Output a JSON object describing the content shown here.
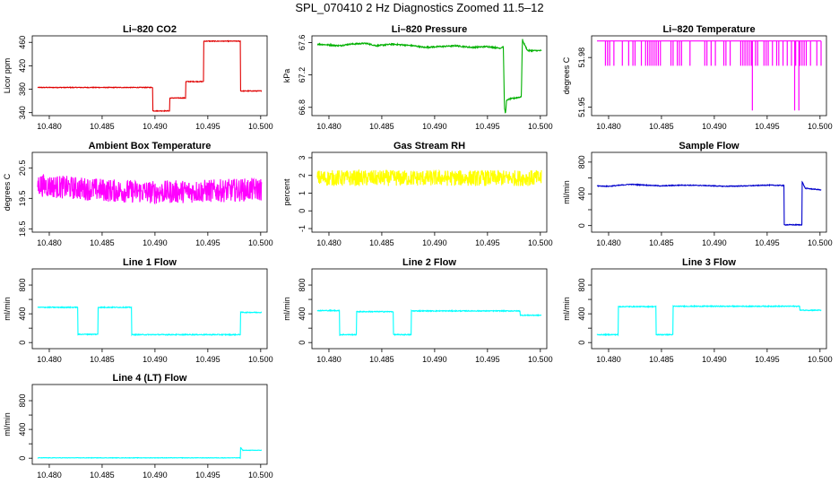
{
  "figure_title": "SPL_070410  2 Hz Diagnostics Zoomed 11.5–12",
  "x_tick_labels": [
    "10.480",
    "10.485",
    "10.490",
    "10.495",
    "10.500"
  ],
  "chart_data": [
    {
      "type": "line",
      "title": "Li–820 CO2",
      "ylabel": "Licor ppm",
      "color": "#e00000",
      "xlim": [
        10.4789,
        10.5001
      ],
      "ylim": [
        338,
        468
      ],
      "x_ticks": [
        10.48,
        10.485,
        10.49,
        10.495,
        10.5
      ],
      "y_ticks": [
        340,
        380,
        420,
        460
      ],
      "y_tick_labels": [
        "340",
        "380",
        "420",
        "460"
      ],
      "noise": 0.6,
      "x": [
        10.4789,
        10.4898,
        10.4898,
        10.4914,
        10.4914,
        10.4929,
        10.4929,
        10.4946,
        10.4946,
        10.4981,
        10.4981,
        10.5001
      ],
      "y": [
        383,
        383,
        343,
        343,
        365,
        365,
        393,
        393,
        462,
        462,
        377,
        377
      ]
    },
    {
      "type": "line",
      "title": "Li–820 Pressure",
      "ylabel": "kPa",
      "color": "#00b000",
      "xlim": [
        10.4789,
        10.5001
      ],
      "ylim": [
        66.72,
        67.66
      ],
      "x_ticks": [
        10.48,
        10.485,
        10.49,
        10.495,
        10.5
      ],
      "y_ticks": [
        66.8,
        67.2,
        67.6
      ],
      "y_tick_labels": [
        "66.8",
        "67.2",
        "67.6"
      ],
      "noise": 0.008,
      "x": [
        10.4789,
        10.48,
        10.481,
        10.482,
        10.4835,
        10.4845,
        10.486,
        10.487,
        10.488,
        10.489,
        10.4905,
        10.492,
        10.4935,
        10.495,
        10.4962,
        10.4965,
        10.4966,
        10.4967,
        10.4968,
        10.497,
        10.4982,
        10.4983,
        10.4984,
        10.4986,
        10.4988,
        10.4992,
        10.5001
      ],
      "y": [
        67.58,
        67.57,
        67.56,
        67.58,
        67.59,
        67.56,
        67.58,
        67.57,
        67.56,
        67.54,
        67.55,
        67.56,
        67.54,
        67.55,
        67.53,
        67.55,
        66.8,
        66.72,
        66.88,
        66.9,
        66.93,
        67.64,
        67.6,
        67.55,
        67.5,
        67.5,
        67.5
      ]
    },
    {
      "type": "line",
      "title": "Li–820 Temperature",
      "ylabel": "degrees C",
      "color": "#ff00ff",
      "xlim": [
        10.4789,
        10.5001
      ],
      "ylim": [
        51.946,
        51.992
      ],
      "x_ticks": [
        10.48,
        10.485,
        10.49,
        10.495,
        10.5
      ],
      "y_ticks": [
        51.95,
        51.98
      ],
      "y_tick_labels": [
        "51.95",
        "51.98"
      ],
      "noise": 0,
      "x": [
        10.4789,
        10.5001
      ],
      "y": [
        51.99,
        51.99
      ],
      "spike_to": 51.975,
      "spike_step": 0.0002,
      "deep_spikes": [
        {
          "x": 10.4936,
          "y": 51.948
        },
        {
          "x": 10.4976,
          "y": 51.948
        },
        {
          "x": 10.498,
          "y": 51.948
        }
      ]
    },
    {
      "type": "line",
      "title": "Ambient Box Temperature",
      "ylabel": "degrees C",
      "color": "#ff00ff",
      "xlim": [
        10.4789,
        10.5001
      ],
      "ylim": [
        18.45,
        20.95
      ],
      "x_ticks": [
        10.48,
        10.485,
        10.49,
        10.495,
        10.5
      ],
      "y_ticks": [
        18.5,
        19.5,
        20.5
      ],
      "y_tick_labels": [
        "18.5",
        "19.5",
        "20.5"
      ],
      "noise": 0.38,
      "x": [
        10.4789,
        10.48,
        10.486,
        10.49,
        10.496,
        10.5001
      ],
      "y": [
        19.95,
        19.9,
        19.75,
        19.7,
        19.75,
        19.8
      ]
    },
    {
      "type": "line",
      "title": "Gas Stream RH",
      "ylabel": "percent",
      "color": "#ffff00",
      "xlim": [
        10.4789,
        10.5001
      ],
      "ylim": [
        -1.1,
        3.2
      ],
      "x_ticks": [
        10.48,
        10.485,
        10.49,
        10.495,
        10.5
      ],
      "y_ticks": [
        -1,
        0,
        1,
        2,
        3
      ],
      "y_tick_labels": [
        "-1",
        "0",
        "1",
        "2",
        "3"
      ],
      "noise": 0.45,
      "x": [
        10.4789,
        10.5001
      ],
      "y": [
        1.85,
        1.85
      ]
    },
    {
      "type": "line",
      "title": "Sample Flow",
      "ylabel": "ml/min",
      "color": "#0000cc",
      "xlim": [
        10.4789,
        10.5001
      ],
      "ylim": [
        -60,
        900
      ],
      "x_ticks": [
        10.48,
        10.485,
        10.49,
        10.495,
        10.5
      ],
      "y_ticks": [
        0,
        200,
        400,
        600,
        800
      ],
      "y_tick_labels": [
        "0",
        "",
        "400",
        "",
        "800"
      ],
      "noise": 5,
      "x": [
        10.4789,
        10.48,
        10.482,
        10.485,
        10.487,
        10.489,
        10.491,
        10.493,
        10.495,
        10.4966,
        10.4966,
        10.4983,
        10.4983,
        10.4986,
        10.5001
      ],
      "y": [
        500,
        495,
        520,
        500,
        510,
        505,
        495,
        500,
        510,
        505,
        10,
        10,
        555,
        470,
        450
      ]
    },
    {
      "type": "line",
      "title": "Line 1 Flow",
      "ylabel": "ml/min",
      "color": "#00ffff",
      "xlim": [
        10.4789,
        10.5001
      ],
      "ylim": [
        -60,
        1000
      ],
      "x_ticks": [
        10.48,
        10.485,
        10.49,
        10.495,
        10.5
      ],
      "y_ticks": [
        0,
        200,
        400,
        600,
        800
      ],
      "y_tick_labels": [
        "0",
        "",
        "400",
        "",
        "800"
      ],
      "noise": 6,
      "x": [
        10.4789,
        10.4827,
        10.4827,
        10.4846,
        10.4846,
        10.4878,
        10.4878,
        10.4981,
        10.4981,
        10.5001
      ],
      "y": [
        490,
        490,
        115,
        115,
        490,
        490,
        110,
        110,
        420,
        420
      ]
    },
    {
      "type": "line",
      "title": "Line 2 Flow",
      "ylabel": "ml/min",
      "color": "#00ffff",
      "xlim": [
        10.4789,
        10.5001
      ],
      "ylim": [
        -60,
        1000
      ],
      "x_ticks": [
        10.48,
        10.485,
        10.49,
        10.495,
        10.5
      ],
      "y_ticks": [
        0,
        200,
        400,
        600,
        800
      ],
      "y_tick_labels": [
        "0",
        "",
        "400",
        "",
        "800"
      ],
      "noise": 6,
      "x": [
        10.4789,
        10.481,
        10.481,
        10.4826,
        10.4826,
        10.4861,
        10.4861,
        10.4878,
        10.4878,
        10.4981,
        10.4981,
        10.5001
      ],
      "y": [
        445,
        445,
        110,
        110,
        430,
        430,
        110,
        110,
        440,
        440,
        380,
        380
      ]
    },
    {
      "type": "line",
      "title": "Line 3 Flow",
      "ylabel": "ml/min",
      "color": "#00ffff",
      "xlim": [
        10.4789,
        10.5001
      ],
      "ylim": [
        -60,
        1000
      ],
      "x_ticks": [
        10.48,
        10.485,
        10.49,
        10.495,
        10.5
      ],
      "y_ticks": [
        0,
        200,
        400,
        600,
        800
      ],
      "y_tick_labels": [
        "0",
        "",
        "400",
        "",
        "800"
      ],
      "noise": 6,
      "x": [
        10.4789,
        10.4809,
        10.4809,
        10.4845,
        10.4845,
        10.4861,
        10.4861,
        10.4981,
        10.4981,
        10.5001
      ],
      "y": [
        110,
        110,
        500,
        500,
        110,
        110,
        505,
        505,
        450,
        450
      ]
    },
    {
      "type": "line",
      "title": "Line 4 (LT) Flow",
      "ylabel": "ml/min",
      "color": "#00ffff",
      "xlim": [
        10.4789,
        10.5001
      ],
      "ylim": [
        -60,
        1000
      ],
      "x_ticks": [
        10.48,
        10.485,
        10.49,
        10.495,
        10.5
      ],
      "y_ticks": [
        0,
        200,
        400,
        600,
        800
      ],
      "y_tick_labels": [
        "0",
        "",
        "400",
        "",
        "800"
      ],
      "noise": 3,
      "x": [
        10.4789,
        10.4981,
        10.4981,
        10.4983,
        10.5001
      ],
      "y": [
        5,
        5,
        150,
        110,
        110
      ]
    }
  ]
}
